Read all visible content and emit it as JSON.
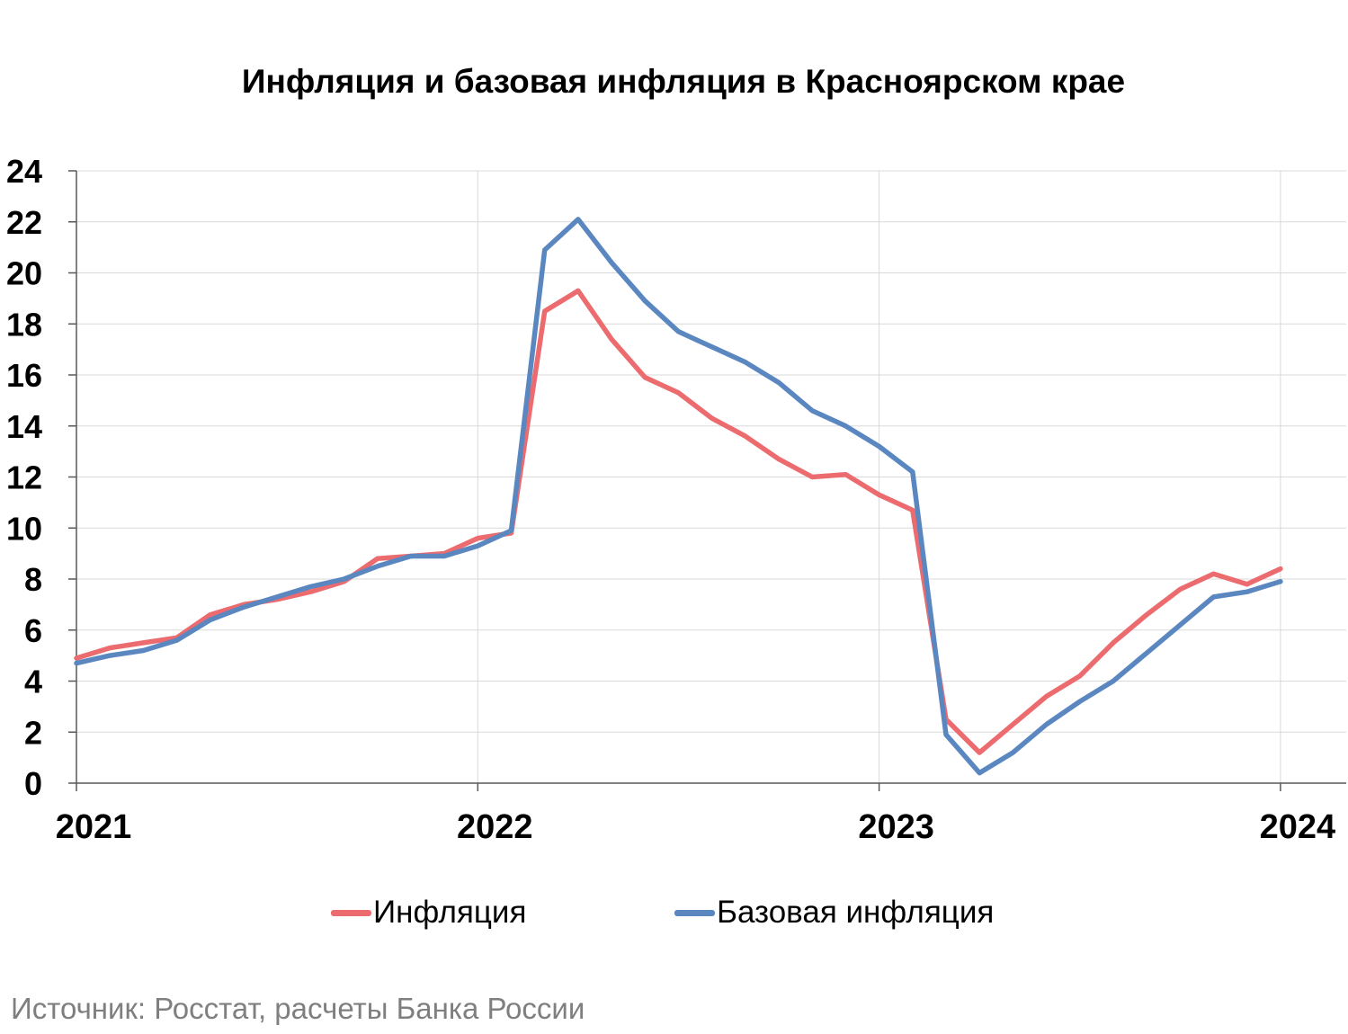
{
  "chart_data": {
    "type": "line",
    "title": "Инфляция и базовая инфляция в Красноярском крае",
    "ylim": [
      0,
      24
    ],
    "yticks": [
      "0",
      "2",
      "4",
      "6",
      "8",
      "10",
      "12",
      "14",
      "16",
      "18",
      "20",
      "22",
      "24"
    ],
    "year_ticks": [
      "2021",
      "2022",
      "2023",
      "2024"
    ],
    "grid": true,
    "legend_position": "bottom",
    "source": "Источник: Росстат, расчеты Банка России",
    "series": [
      {
        "name": "Инфляция",
        "color": "#ec6b6f",
        "values": [
          4.9,
          5.3,
          5.5,
          5.7,
          6.6,
          7.0,
          7.2,
          7.5,
          7.9,
          8.8,
          8.9,
          9.0,
          9.6,
          9.8,
          18.5,
          19.3,
          17.4,
          15.9,
          15.3,
          14.3,
          13.6,
          12.7,
          12.0,
          12.1,
          11.3,
          10.7,
          2.5,
          1.2,
          2.3,
          3.4,
          4.2,
          5.5,
          6.6,
          7.6,
          8.2,
          7.8,
          8.4
        ]
      },
      {
        "name": "Базовая инфляция",
        "color": "#5b87c1",
        "values": [
          4.7,
          5.0,
          5.2,
          5.6,
          6.4,
          6.9,
          7.3,
          7.7,
          8.0,
          8.5,
          8.9,
          8.9,
          9.3,
          9.9,
          20.9,
          22.1,
          20.4,
          18.9,
          17.7,
          17.1,
          16.5,
          15.7,
          14.6,
          14.0,
          13.2,
          12.2,
          1.9,
          0.4,
          1.2,
          2.3,
          3.2,
          4.0,
          5.1,
          6.2,
          7.3,
          7.5,
          7.9
        ]
      }
    ]
  }
}
